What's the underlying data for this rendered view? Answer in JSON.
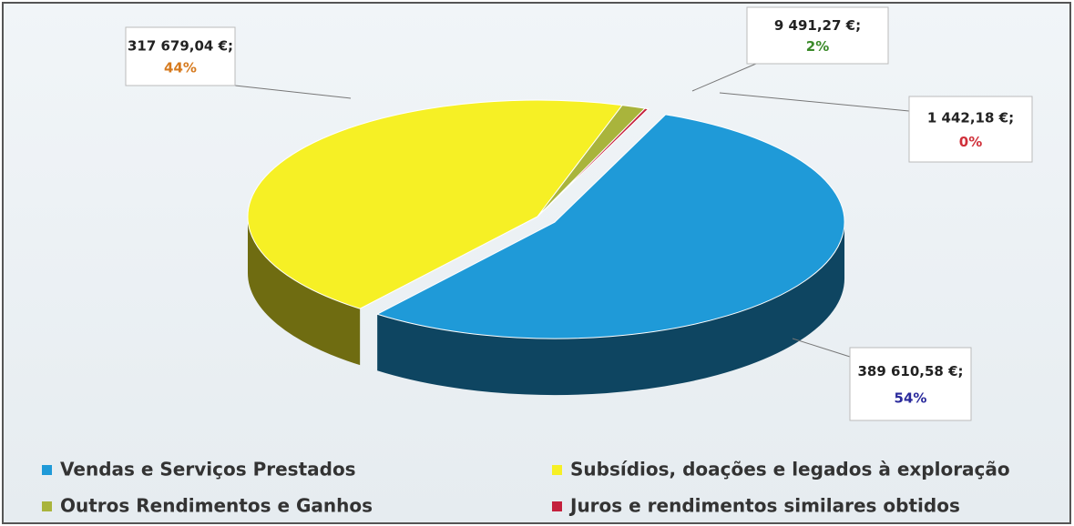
{
  "chart_data": {
    "type": "pie",
    "categories": [
      "Vendas e Serviços Prestados",
      "Subsídios, doações e legados à exploração",
      "Outros Rendimentos e Ganhos",
      "Juros e rendimentos similares obtidos"
    ],
    "values": [
      389610.58,
      317679.04,
      9491.27,
      1442.18
    ],
    "value_labels": [
      "389 610,58 €;",
      "317 679,04 €;",
      "9 491,27 €;",
      "1 442,18 €;"
    ],
    "percent_labels": [
      "54%",
      "44%",
      "2%",
      "0%"
    ],
    "colors": [
      "#1f9ad8",
      "#f6f025",
      "#a9b43c",
      "#c4203c"
    ],
    "legend": "bottom"
  }
}
